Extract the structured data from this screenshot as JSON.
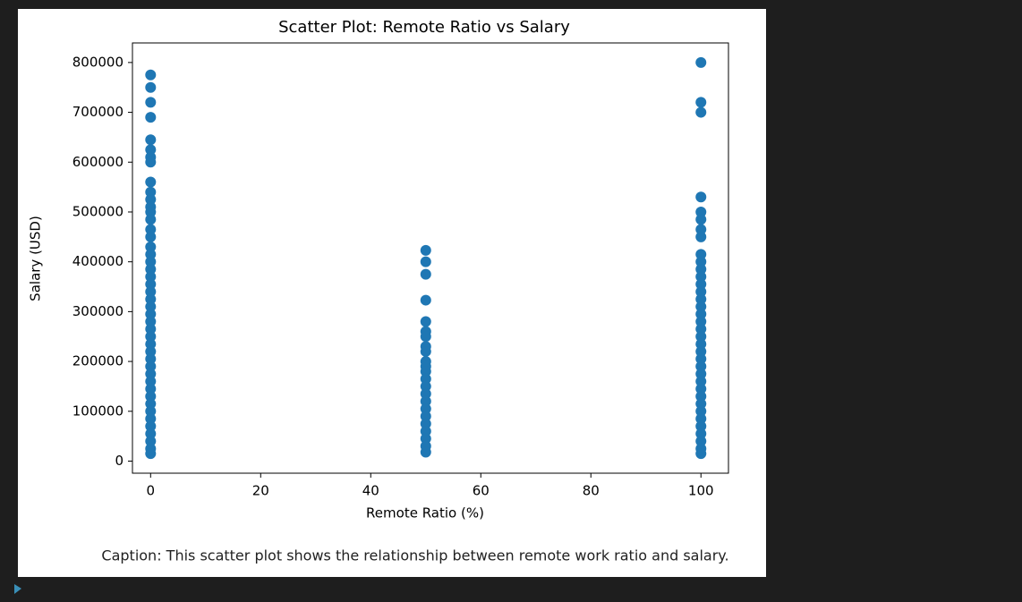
{
  "chart_data": {
    "type": "scatter",
    "title": "Scatter Plot: Remote Ratio vs Salary",
    "x_label": "Remote Ratio (%)",
    "y_label": "Salary (USD)",
    "color": "#1f77b4",
    "x": [
      0,
      0,
      0,
      0,
      0,
      0,
      0,
      0,
      0,
      0,
      0,
      0,
      0,
      0,
      0,
      0,
      0,
      0,
      0,
      0,
      0,
      0,
      0,
      0,
      0,
      0,
      0,
      0,
      0,
      0,
      0,
      0,
      0,
      0,
      0,
      0,
      0,
      0,
      0,
      0,
      0,
      0,
      0,
      0,
      0,
      50,
      50,
      50,
      50,
      50,
      50,
      50,
      50,
      50,
      50,
      50,
      50,
      50,
      50,
      50,
      50,
      50,
      50,
      50,
      50,
      50,
      50,
      50,
      100,
      100,
      100,
      100,
      100,
      100,
      100,
      100,
      100,
      100,
      100,
      100,
      100,
      100,
      100,
      100,
      100,
      100,
      100,
      100,
      100,
      100,
      100,
      100,
      100,
      100,
      100,
      100,
      100,
      100,
      100,
      100,
      100,
      100,
      100,
      100
    ],
    "y": [
      775000,
      750000,
      720000,
      690000,
      645000,
      625000,
      610000,
      600000,
      560000,
      540000,
      525000,
      510000,
      500000,
      485000,
      465000,
      450000,
      430000,
      415000,
      400000,
      385000,
      370000,
      355000,
      340000,
      325000,
      310000,
      295000,
      280000,
      265000,
      250000,
      235000,
      220000,
      205000,
      190000,
      175000,
      160000,
      145000,
      130000,
      115000,
      100000,
      85000,
      70000,
      55000,
      40000,
      25000,
      15000,
      423000,
      400000,
      375000,
      323000,
      280000,
      260000,
      250000,
      230000,
      220000,
      200000,
      190000,
      180000,
      165000,
      150000,
      135000,
      120000,
      105000,
      90000,
      75000,
      60000,
      45000,
      30000,
      18000,
      800000,
      720000,
      700000,
      530000,
      500000,
      485000,
      465000,
      450000,
      415000,
      400000,
      385000,
      370000,
      355000,
      340000,
      325000,
      310000,
      295000,
      280000,
      265000,
      250000,
      235000,
      220000,
      205000,
      190000,
      175000,
      160000,
      145000,
      130000,
      115000,
      100000,
      85000,
      70000,
      55000,
      40000,
      25000,
      15000
    ],
    "xlim": [
      -3.3,
      105
    ],
    "ylim": [
      -24250,
      839250
    ],
    "xticks": [
      0,
      20,
      40,
      60,
      80,
      100
    ],
    "yticks": [
      0,
      100000,
      200000,
      300000,
      400000,
      500000,
      600000,
      700000,
      800000
    ]
  },
  "caption": "Caption: This scatter plot shows the relationship between remote work ratio and salary."
}
